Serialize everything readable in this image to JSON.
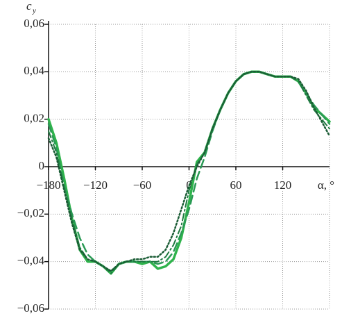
{
  "chart_data": {
    "type": "line",
    "y_label": "c",
    "y_label_sub": "y",
    "x_label": "α, °",
    "xlim": [
      -180,
      180
    ],
    "ylim": [
      -0.06,
      0.06
    ],
    "xticks": [
      {
        "value": -180,
        "label": "−180"
      },
      {
        "value": -120,
        "label": "−120"
      },
      {
        "value": -60,
        "label": "−60"
      },
      0,
      60,
      120
    ],
    "yticks": [
      {
        "value": -0.06,
        "label": "−0,06"
      },
      {
        "value": -0.04,
        "label": "−0,04"
      },
      {
        "value": -0.02,
        "label": "−0,02"
      },
      0,
      {
        "value": 0.02,
        "label": "0,02"
      },
      {
        "value": 0.04,
        "label": "0,04"
      },
      {
        "value": 0.06,
        "label": "0,06"
      }
    ],
    "grid": true,
    "x": [
      -180,
      -170,
      -160,
      -150,
      -140,
      -130,
      -120,
      -110,
      -100,
      -90,
      -80,
      -70,
      -60,
      -50,
      -40,
      -30,
      -20,
      -10,
      0,
      10,
      20,
      30,
      40,
      50,
      60,
      70,
      80,
      90,
      100,
      110,
      120,
      130,
      140,
      150,
      160,
      170,
      180
    ],
    "series": [
      {
        "color": "#2fb34c",
        "style": "solid",
        "width": 3.5,
        "values": [
          0.02,
          0.01,
          -0.005,
          -0.022,
          -0.035,
          -0.04,
          -0.04,
          -0.042,
          -0.045,
          -0.041,
          -0.04,
          -0.04,
          -0.041,
          -0.04,
          -0.043,
          -0.042,
          -0.039,
          -0.03,
          -0.015,
          0.002,
          0.006,
          0.016,
          0.024,
          0.031,
          0.036,
          0.039,
          0.04,
          0.04,
          0.039,
          0.038,
          0.038,
          0.038,
          0.036,
          0.031,
          0.025,
          0.022,
          0.019
        ]
      },
      {
        "color": "#2a9a55",
        "style": "dashed",
        "width": 2.5,
        "values": [
          0.018,
          0.008,
          -0.008,
          -0.02,
          -0.03,
          -0.037,
          -0.04,
          -0.042,
          -0.044,
          -0.041,
          -0.04,
          -0.04,
          -0.04,
          -0.04,
          -0.041,
          -0.04,
          -0.036,
          -0.028,
          -0.018,
          -0.005,
          0.004,
          0.015,
          0.024,
          0.031,
          0.036,
          0.039,
          0.04,
          0.04,
          0.039,
          0.038,
          0.038,
          0.038,
          0.036,
          0.031,
          0.026,
          0.022,
          0.018
        ]
      },
      {
        "color": "#1e7a40",
        "style": "dashdot",
        "width": 2,
        "values": [
          0.015,
          0.006,
          -0.009,
          -0.022,
          -0.034,
          -0.039,
          -0.04,
          -0.042,
          -0.045,
          -0.041,
          -0.04,
          -0.04,
          -0.04,
          -0.04,
          -0.04,
          -0.038,
          -0.033,
          -0.025,
          -0.01,
          0.001,
          0.006,
          0.016,
          0.024,
          0.031,
          0.036,
          0.039,
          0.04,
          0.04,
          0.039,
          0.038,
          0.038,
          0.038,
          0.036,
          0.03,
          0.024,
          0.02,
          0.016
        ]
      },
      {
        "color": "#1a5c35",
        "style": "dotted",
        "width": 2.5,
        "values": [
          0.012,
          0.004,
          -0.01,
          -0.024,
          -0.035,
          -0.039,
          -0.04,
          -0.042,
          -0.044,
          -0.041,
          -0.04,
          -0.039,
          -0.039,
          -0.038,
          -0.038,
          -0.035,
          -0.028,
          -0.018,
          -0.008,
          0.0,
          0.006,
          0.016,
          0.024,
          0.031,
          0.036,
          0.039,
          0.04,
          0.04,
          0.039,
          0.038,
          0.038,
          0.038,
          0.037,
          0.032,
          0.025,
          0.019,
          0.013
        ]
      }
    ]
  }
}
